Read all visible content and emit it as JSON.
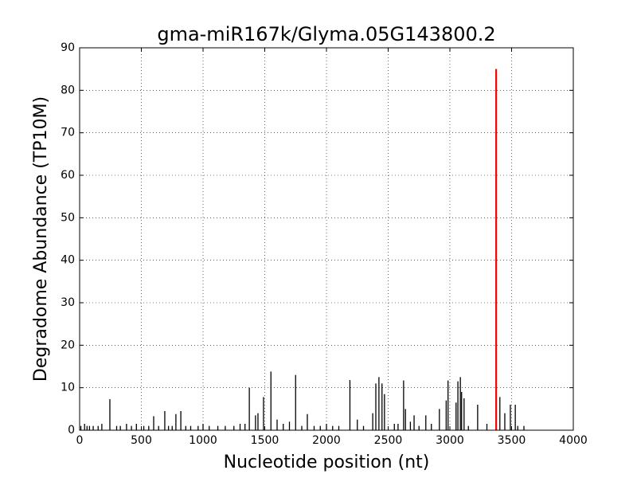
{
  "chart_data": {
    "type": "spike",
    "title": "gma-miR167k/Glyma.05G143800.2",
    "x_label": "Nucleotide position (nt)",
    "y_label": "Degradome Abundance (TP10M)",
    "color": "#000000",
    "x": [
      10,
      40,
      60,
      80,
      110,
      150,
      180,
      245,
      300,
      330,
      380,
      420,
      460,
      520,
      560,
      600,
      640,
      690,
      720,
      750,
      780,
      820,
      860,
      900,
      960,
      1000,
      1050,
      1120,
      1180,
      1250,
      1300,
      1340,
      1375,
      1425,
      1445,
      1490,
      1550,
      1600,
      1650,
      1700,
      1750,
      1800,
      1845,
      1900,
      1950,
      2000,
      2050,
      2100,
      2190,
      2250,
      2300,
      2375,
      2400,
      2425,
      2450,
      2470,
      2550,
      2580,
      2625,
      2640,
      2680,
      2710,
      2750,
      2805,
      2850,
      2915,
      2970,
      2985,
      3050,
      3065,
      3085,
      3095,
      3115,
      3150,
      3225,
      3300,
      3405,
      3445,
      3490,
      3530,
      3550,
      3600
    ],
    "values": [
      1,
      1.5,
      1,
      1,
      1,
      1,
      1.5,
      7.3,
      1,
      1,
      1.5,
      1,
      1.5,
      1,
      1,
      3.3,
      1,
      4.5,
      1,
      1,
      3.8,
      4.5,
      1,
      1,
      1,
      1.5,
      1,
      1,
      1,
      1,
      1.5,
      1.5,
      10,
      3.5,
      4,
      7.8,
      13.8,
      2.5,
      1.5,
      2,
      13,
      1,
      3.8,
      1,
      1,
      1.5,
      1,
      1,
      11.8,
      2.5,
      1,
      4,
      11,
      12.5,
      11,
      8.5,
      1.5,
      1.5,
      11.7,
      5,
      2,
      3.5,
      1,
      3.5,
      1.5,
      5,
      7,
      11.7,
      6.5,
      11.5,
      12.5,
      9,
      7.5,
      1,
      6,
      1.5,
      7.8,
      4,
      6,
      6,
      1,
      1
    ],
    "highlight": {
      "x": 3375,
      "value": 85,
      "color": "#ff0000"
    },
    "xlim": [
      0,
      4000
    ],
    "xticks": [
      0,
      500,
      1000,
      1500,
      2000,
      2500,
      3000,
      3500,
      4000
    ],
    "ylim": [
      0,
      90
    ],
    "yticks": [
      0,
      10,
      20,
      30,
      40,
      50,
      60,
      70,
      80,
      90
    ],
    "grid": true
  }
}
